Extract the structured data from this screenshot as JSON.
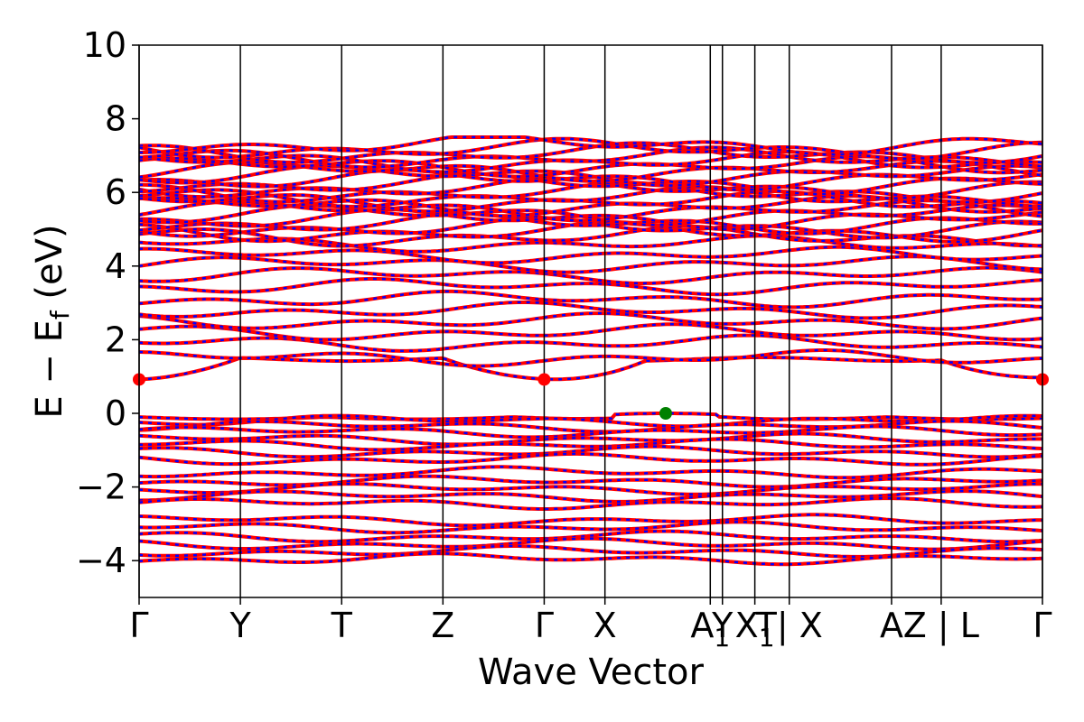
{
  "chart_data": {
    "type": "line",
    "title": "",
    "xlabel": "Wave Vector",
    "ylabel_parts": {
      "main": "E − E",
      "sub": "f",
      "unit": " (eV)"
    },
    "ylim": [
      -5,
      10
    ],
    "yticks": [
      {
        "value": -4,
        "label": "−4"
      },
      {
        "value": -2,
        "label": "−2"
      },
      {
        "value": 0,
        "label": "0"
      },
      {
        "value": 2,
        "label": "2"
      },
      {
        "value": 4,
        "label": "4"
      },
      {
        "value": 6,
        "label": "6"
      },
      {
        "value": 8,
        "label": "8"
      },
      {
        "value": 10,
        "label": "10"
      }
    ],
    "kpath_ticks": [
      {
        "k": 0.0,
        "label": "Γ"
      },
      {
        "k": 1.0,
        "label": "Y"
      },
      {
        "k": 2.0,
        "label": "T"
      },
      {
        "k": 3.0,
        "label": "Z"
      },
      {
        "k": 4.0,
        "label": "Γ"
      },
      {
        "k": 4.6,
        "label": "X"
      },
      {
        "k": 5.64,
        "label": "A1"
      },
      {
        "k": 5.76,
        "label": "Y"
      },
      {
        "k": 6.08,
        "label": "X1"
      },
      {
        "k": 6.42,
        "label": "T| X"
      },
      {
        "k": 7.43,
        "label": "A"
      },
      {
        "k": 7.92,
        "label": "Z | L"
      },
      {
        "k": 8.92,
        "label": "Γ"
      }
    ],
    "series": [
      {
        "color": "#ff0000",
        "style": "solid"
      },
      {
        "color": "#0000ff",
        "style": "dashed"
      }
    ],
    "valence_band_max": {
      "k": 5.2,
      "energy": 0.0,
      "color": "#008000"
    },
    "conduction_band_min": [
      {
        "k": 0.0,
        "energy": 0.92,
        "color": "#ff0000"
      },
      {
        "k": 4.0,
        "energy": 0.92,
        "color": "#ff0000"
      },
      {
        "k": 8.92,
        "energy": 0.92,
        "color": "#ff0000"
      }
    ],
    "band_groups": {
      "conduction_low": {
        "base": 0.92,
        "count": 1
      },
      "conduction_mid": {
        "energies": [
          1.5,
          1.9,
          2.2,
          2.5,
          2.8,
          3.1,
          3.45,
          3.75,
          4.05,
          4.3,
          4.6
        ],
        "count": 11
      },
      "conduction_high": {
        "from": 4.8,
        "to": 7.3,
        "count": 22
      },
      "valence_top": {
        "energies": [
          -0.05,
          -0.2,
          -0.35,
          -0.5,
          -0.7,
          -0.85,
          -1.05,
          -1.25
        ],
        "count": 8
      },
      "valence_mid": {
        "energies": [
          -1.6,
          -1.85,
          -2.05,
          -2.25,
          -2.45
        ],
        "count": 5
      },
      "valence_low": {
        "energies": [
          -2.9,
          -3.1,
          -3.35,
          -3.55,
          -3.75,
          -3.95
        ],
        "count": 6
      }
    },
    "grid": false,
    "legend": "none"
  }
}
